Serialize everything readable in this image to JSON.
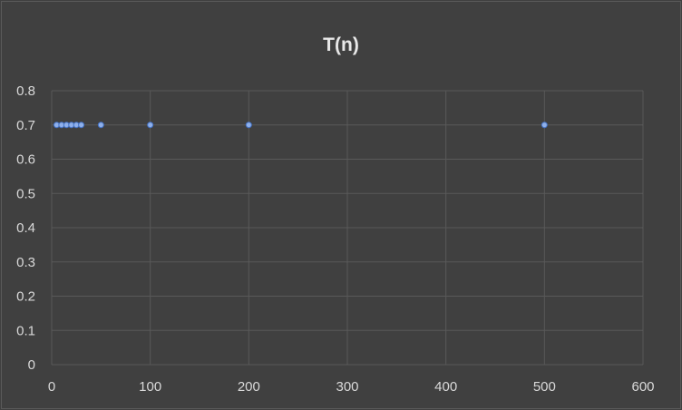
{
  "chart_data": {
    "type": "scatter",
    "title": "T(n)",
    "xlabel": "",
    "ylabel": "",
    "xlim": [
      0,
      600
    ],
    "ylim": [
      0,
      0.8
    ],
    "x_ticks": [
      "0",
      "100",
      "200",
      "300",
      "400",
      "500",
      "600"
    ],
    "y_ticks": [
      "0",
      "0.1",
      "0.2",
      "0.3",
      "0.4",
      "0.5",
      "0.6",
      "0.7",
      "0.8"
    ],
    "grid": true,
    "legend": "none",
    "series": [
      {
        "x": [
          5,
          10,
          15,
          20,
          25,
          30,
          50,
          100,
          200,
          500
        ],
        "y": [
          0.7,
          0.7,
          0.7,
          0.7,
          0.7,
          0.7,
          0.7,
          0.7,
          0.7,
          0.7
        ],
        "color": "#4472c4",
        "line": true,
        "markers": true
      }
    ],
    "colors": {
      "background": "#404040",
      "grid": "#595959",
      "text": "#d9d9d9",
      "series": "#4472c4",
      "marker": "#8fb0ea"
    }
  }
}
